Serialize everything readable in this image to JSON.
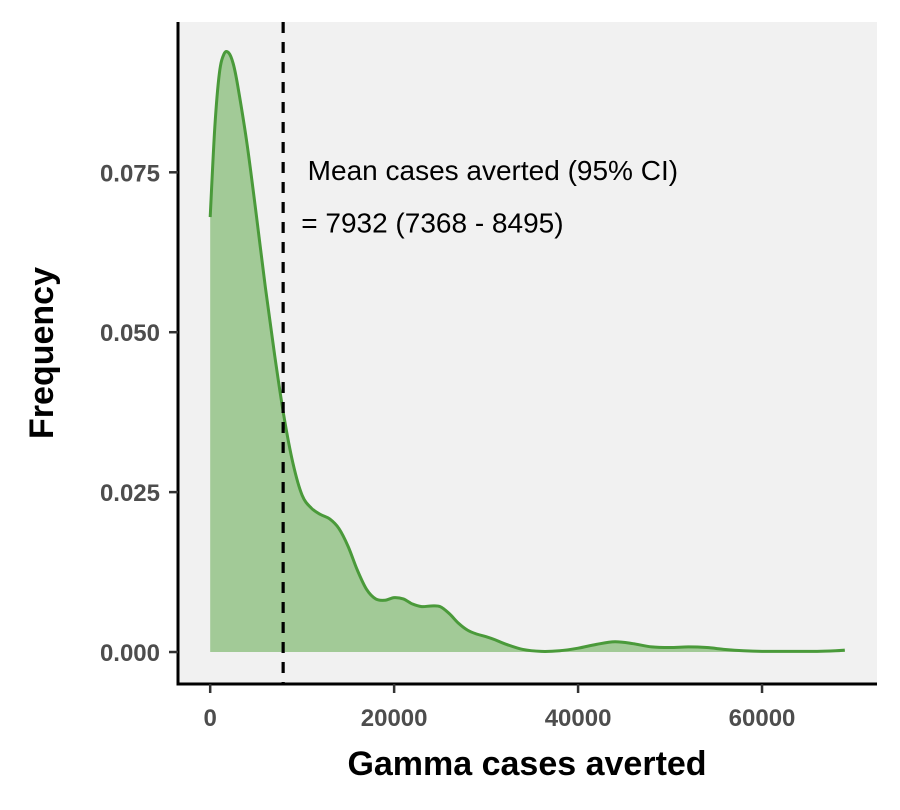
{
  "chart_data": {
    "type": "area",
    "title": "",
    "xlabel": "Gamma cases averted",
    "ylabel": "Frequency",
    "xlim": [
      -3500,
      72500
    ],
    "ylim": [
      -0.005,
      0.0985
    ],
    "grid": false,
    "x_ticks": [
      0,
      20000,
      40000,
      60000
    ],
    "x_tick_labels": [
      "0",
      "20000",
      "40000",
      "60000"
    ],
    "y_ticks": [
      0,
      0.025,
      0.05,
      0.075
    ],
    "y_tick_labels": [
      "0.000",
      "0.025",
      "0.050",
      "0.075"
    ],
    "series": [
      {
        "line_color": "#4a9a3a",
        "fill_color": "#a2ca97",
        "x": [
          0,
          500,
          1000,
          1500,
          2000,
          2500,
          3000,
          4000,
          5000,
          6000,
          7000,
          8000,
          9000,
          10000,
          11000,
          12000,
          13000,
          14000,
          15000,
          16000,
          17000,
          18000,
          19000,
          20000,
          21000,
          22000,
          23000,
          24000,
          25000,
          26000,
          27000,
          28000,
          29000,
          30000,
          31000,
          32000,
          34000,
          36000,
          38000,
          40000,
          42000,
          44000,
          46000,
          48000,
          50000,
          52000,
          54000,
          56000,
          58000,
          60000,
          62000,
          64000,
          66000,
          68000,
          69000
        ],
        "y": [
          0.068,
          0.082,
          0.0905,
          0.0935,
          0.0937,
          0.092,
          0.0885,
          0.0795,
          0.0685,
          0.057,
          0.0465,
          0.037,
          0.0295,
          0.0245,
          0.0225,
          0.0215,
          0.0208,
          0.0193,
          0.0165,
          0.0128,
          0.0098,
          0.0083,
          0.0081,
          0.0085,
          0.0083,
          0.0075,
          0.0071,
          0.0072,
          0.0071,
          0.006,
          0.0045,
          0.0034,
          0.0028,
          0.0024,
          0.0019,
          0.0013,
          0.0004,
          0.0001,
          0.0002,
          0.0006,
          0.0012,
          0.0016,
          0.0013,
          0.0008,
          0.0007,
          0.0008,
          0.0007,
          0.0004,
          0.0002,
          0.0001,
          0.0001,
          0.0001,
          0.0001,
          0.0002,
          0.0003
        ]
      }
    ],
    "mean_line": {
      "x": 7932,
      "style": "dashed",
      "color": "#000000"
    },
    "annotations": [
      {
        "text": "Mean cases averted (95% CI)",
        "x": 10600,
        "y": 0.0738
      },
      {
        "text": "= 7932 (7368 - 8495)",
        "x": 9900,
        "y": 0.0656
      }
    ],
    "panel_background": "#f1f1f1"
  }
}
